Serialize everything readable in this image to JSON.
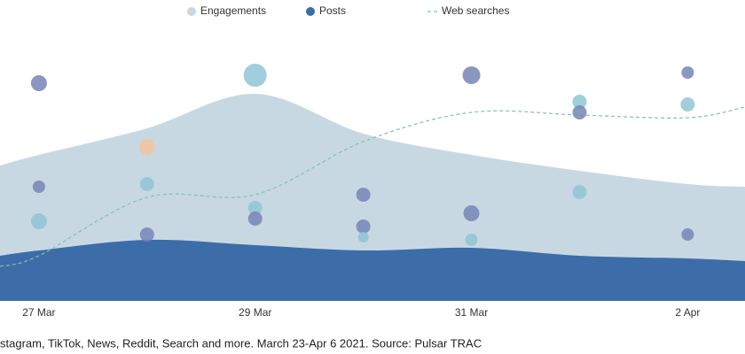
{
  "chart_data": {
    "type": "area",
    "xlim": [
      -0.36,
      6.53
    ],
    "xticks": [
      {
        "value": 0,
        "label": "27 Mar"
      },
      {
        "value": 2,
        "label": "29 Mar"
      },
      {
        "value": 4,
        "label": "31 Mar"
      },
      {
        "value": 6,
        "label": "2 Apr"
      }
    ],
    "ylim": [
      0,
      100
    ],
    "series": [
      {
        "name": "Engagements",
        "type": "area",
        "color": "#c8d8e3",
        "x": [
          -0.36,
          0,
          1,
          2,
          3,
          4,
          5,
          6,
          6.53
        ],
        "values": [
          51,
          55,
          65,
          78,
          63,
          55,
          49,
          44,
          43
        ]
      },
      {
        "name": "Posts",
        "type": "area",
        "color": "#3d6da8",
        "x": [
          -0.36,
          0,
          1,
          2,
          3,
          4,
          5,
          6,
          6.53
        ],
        "values": [
          17,
          19,
          23,
          21,
          19,
          20,
          17,
          16,
          15
        ]
      },
      {
        "name": "Web searches",
        "type": "line",
        "color": "#7fc4a8",
        "x": [
          -0.36,
          0,
          1,
          2,
          3,
          4,
          5,
          6,
          6.53
        ],
        "values": [
          13,
          17,
          39,
          40,
          60,
          71,
          70,
          69,
          73
        ]
      }
    ],
    "bubbles": {
      "x": [
        0,
        0,
        0,
        1,
        1,
        1,
        2,
        2,
        2,
        3,
        3,
        3,
        4,
        4,
        4,
        5,
        5,
        5,
        6,
        6,
        6
      ],
      "y": [
        82,
        43,
        30,
        58,
        44,
        25,
        85,
        35,
        31,
        40,
        28,
        24,
        85,
        33,
        23,
        75,
        71,
        41,
        86,
        74,
        25
      ],
      "sizes": [
        9,
        7,
        9,
        9,
        8,
        8,
        13,
        8,
        8,
        8,
        8,
        6,
        10,
        9,
        7,
        8,
        8,
        8,
        7,
        8,
        7
      ],
      "colors": [
        "#7585b6",
        "#7585b6",
        "#8fc6d4",
        "#f2c69e",
        "#8fc6d4",
        "#7585b6",
        "#8fc6d4",
        "#8fc6d4",
        "#7585b6",
        "#7585b6",
        "#7585b6",
        "#8fc6d4",
        "#7585b6",
        "#7585b6",
        "#8fc6d4",
        "#8fc6d4",
        "#7585b6",
        "#8fc6d4",
        "#7585b6",
        "#8fc6d4",
        "#7585b6"
      ]
    },
    "caption": "stagram, TikTok, News, Reddit, Search and more. March 23-Apr 6 2021. Source: Pulsar TRAC"
  }
}
